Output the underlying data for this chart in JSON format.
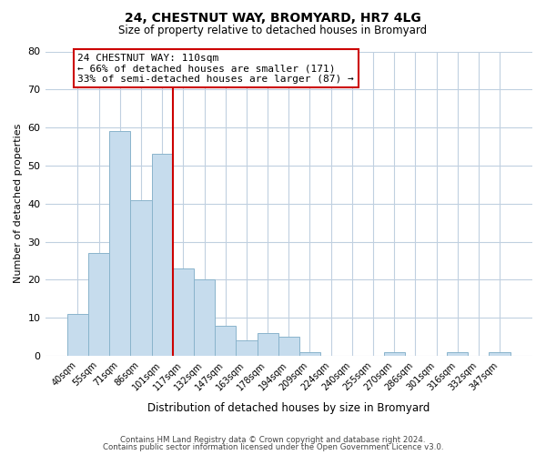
{
  "title": "24, CHESTNUT WAY, BROMYARD, HR7 4LG",
  "subtitle": "Size of property relative to detached houses in Bromyard",
  "xlabel": "Distribution of detached houses by size in Bromyard",
  "ylabel": "Number of detached properties",
  "bar_labels": [
    "40sqm",
    "55sqm",
    "71sqm",
    "86sqm",
    "101sqm",
    "117sqm",
    "132sqm",
    "147sqm",
    "163sqm",
    "178sqm",
    "194sqm",
    "209sqm",
    "224sqm",
    "240sqm",
    "255sqm",
    "270sqm",
    "286sqm",
    "301sqm",
    "316sqm",
    "332sqm",
    "347sqm"
  ],
  "bar_values": [
    11,
    27,
    59,
    41,
    53,
    23,
    20,
    8,
    4,
    6,
    5,
    1,
    0,
    0,
    0,
    1,
    0,
    0,
    1,
    0,
    1
  ],
  "bar_color": "#c6dced",
  "bar_edge_color": "#8ab4cc",
  "ylim": [
    0,
    80
  ],
  "yticks": [
    0,
    10,
    20,
    30,
    40,
    50,
    60,
    70,
    80
  ],
  "vline_x": 4.5,
  "vline_color": "#cc0000",
  "annotation_line1": "24 CHESTNUT WAY: 110sqm",
  "annotation_line2": "← 66% of detached houses are smaller (171)",
  "annotation_line3": "33% of semi-detached houses are larger (87) →",
  "annotation_box_color": "#ffffff",
  "annotation_box_edge": "#cc0000",
  "footer_line1": "Contains HM Land Registry data © Crown copyright and database right 2024.",
  "footer_line2": "Contains public sector information licensed under the Open Government Licence v3.0.",
  "background_color": "#ffffff",
  "grid_color": "#c0d0e0"
}
